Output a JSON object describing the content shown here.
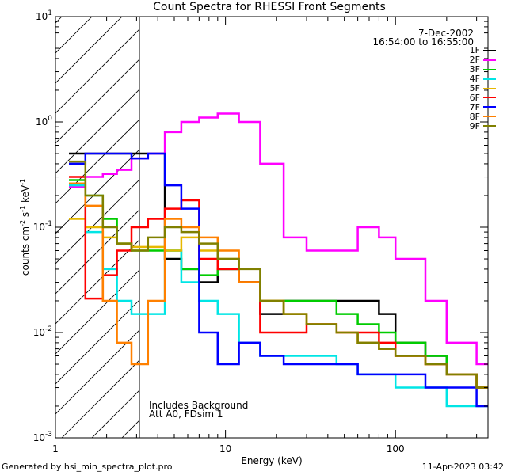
{
  "title": "Count Spectra for RHESSI Front Segments",
  "footer": {
    "left": "Generated by hsi_min_spectra_plot.pro",
    "right": "11-Apr-2023 03:42"
  },
  "annotations": {
    "date": "7-Dec-2002",
    "time_range": "16:54:00 to 16:55:00",
    "note_background": "Includes Background",
    "note_attenuator": "Att A0, FDsim 1"
  },
  "axes": {
    "xlabel": "Energy (keV)",
    "ylabel_main": "counts cm",
    "ylabel_sup1": "-2",
    "ylabel_mid": " s",
    "ylabel_sup2": "-1",
    "ylabel_end": " keV",
    "ylabel_sup3": "-1",
    "xticks": [
      {
        "value": 1,
        "label": "1"
      },
      {
        "value": 10,
        "label": "10"
      },
      {
        "value": 100,
        "label": "100"
      }
    ],
    "yticks": [
      {
        "value": 0.001,
        "base": "10",
        "exp": "-3"
      },
      {
        "value": 0.01,
        "base": "10",
        "exp": "-2"
      },
      {
        "value": 0.1,
        "base": "10",
        "exp": "-1"
      },
      {
        "value": 1,
        "base": "10",
        "exp": "0"
      },
      {
        "value": 10,
        "base": "10",
        "exp": "1"
      }
    ]
  },
  "chart_data": {
    "type": "line",
    "title": "Count Spectra for RHESSI Front Segments",
    "xlabel": "Energy (keV)",
    "ylabel": "counts cm^-2 s^-1 keV^-1",
    "xscale": "log",
    "yscale": "log",
    "xlim": [
      1,
      350
    ],
    "ylim": [
      0.001,
      10
    ],
    "grid": false,
    "legend_position": "top-right",
    "shaded_region": {
      "x_range": [
        1,
        3
      ],
      "style": "diagonal hatch"
    },
    "series": [
      {
        "name": "1F",
        "color": "#000000",
        "x": [
          1.2,
          1.5,
          1.9,
          2.3,
          2.8,
          3.5,
          4.4,
          5.5,
          7,
          9,
          12,
          16,
          22,
          30,
          45,
          60,
          80,
          100,
          150,
          200,
          300
        ],
        "y": [
          0.5,
          0.5,
          0.5,
          0.5,
          0.5,
          0.5,
          0.05,
          0.04,
          0.03,
          0.04,
          0.03,
          0.015,
          0.02,
          0.02,
          0.02,
          0.02,
          0.015,
          0.008,
          0.006,
          0.004,
          0.003
        ]
      },
      {
        "name": "2F",
        "color": "#ff00ff",
        "x": [
          1.2,
          1.5,
          1.9,
          2.3,
          2.8,
          3.5,
          4.4,
          5.5,
          7,
          9,
          12,
          16,
          22,
          30,
          45,
          60,
          80,
          100,
          150,
          200,
          300
        ],
        "y": [
          0.24,
          0.3,
          0.32,
          0.35,
          0.45,
          0.5,
          0.8,
          1.0,
          1.1,
          1.2,
          1.0,
          0.4,
          0.08,
          0.06,
          0.06,
          0.1,
          0.08,
          0.05,
          0.02,
          0.008,
          0.005
        ]
      },
      {
        "name": "3F",
        "color": "#00cc00",
        "x": [
          1.2,
          1.5,
          1.9,
          2.3,
          2.8,
          3.5,
          4.4,
          5.5,
          7,
          9,
          12,
          16,
          22,
          30,
          45,
          60,
          80,
          100,
          150,
          200,
          300
        ],
        "y": [
          0.28,
          0.2,
          0.12,
          0.07,
          0.06,
          0.06,
          0.06,
          0.04,
          0.035,
          0.04,
          0.03,
          0.02,
          0.02,
          0.02,
          0.015,
          0.012,
          0.01,
          0.008,
          0.006,
          0.004,
          0.003
        ]
      },
      {
        "name": "4F",
        "color": "#00e5e5",
        "x": [
          1.2,
          1.5,
          1.9,
          2.3,
          2.8,
          3.5,
          4.4,
          5.5,
          7,
          9,
          12,
          16,
          22,
          30,
          45,
          60,
          80,
          100,
          150,
          200,
          300
        ],
        "y": [
          0.25,
          0.09,
          0.04,
          0.02,
          0.015,
          0.015,
          0.06,
          0.03,
          0.02,
          0.015,
          0.008,
          0.006,
          0.006,
          0.006,
          0.005,
          0.004,
          0.004,
          0.003,
          0.003,
          0.002,
          0.002
        ]
      },
      {
        "name": "5F",
        "color": "#e6b800",
        "x": [
          1.2,
          1.5,
          1.9,
          2.3,
          2.8,
          3.5,
          4.4,
          5.5,
          7,
          9,
          12,
          16,
          22,
          30,
          45,
          60,
          80,
          100,
          150,
          200,
          300
        ],
        "y": [
          0.12,
          0.1,
          0.08,
          0.07,
          0.065,
          0.065,
          0.06,
          0.08,
          0.06,
          0.05,
          0.03,
          0.02,
          0.015,
          0.012,
          0.01,
          0.008,
          0.007,
          0.006,
          0.005,
          0.004,
          0.003
        ]
      },
      {
        "name": "6F",
        "color": "#ff0000",
        "x": [
          1.2,
          1.5,
          1.9,
          2.3,
          2.8,
          3.5,
          4.4,
          5.5,
          7,
          9,
          12,
          16,
          22,
          30,
          45,
          60,
          80,
          100,
          150,
          200,
          300
        ],
        "y": [
          0.3,
          0.021,
          0.035,
          0.06,
          0.1,
          0.12,
          0.15,
          0.18,
          0.05,
          0.04,
          0.03,
          0.01,
          0.01,
          0.012,
          0.01,
          0.01,
          0.008,
          0.006,
          0.005,
          0.004,
          0.003
        ]
      },
      {
        "name": "7F",
        "color": "#0000ff",
        "x": [
          1.2,
          1.5,
          1.9,
          2.3,
          2.8,
          3.5,
          4.4,
          5.5,
          7,
          9,
          12,
          16,
          22,
          30,
          45,
          60,
          80,
          100,
          150,
          200,
          300
        ],
        "y": [
          0.4,
          0.5,
          0.5,
          0.5,
          0.45,
          0.5,
          0.25,
          0.15,
          0.01,
          0.005,
          0.008,
          0.006,
          0.005,
          0.005,
          0.005,
          0.004,
          0.004,
          0.004,
          0.003,
          0.003,
          0.002
        ]
      },
      {
        "name": "8F",
        "color": "#ff8000",
        "x": [
          1.2,
          1.5,
          1.9,
          2.3,
          2.8,
          3.5,
          4.4,
          5.5,
          7,
          9,
          12,
          16,
          22,
          30,
          45,
          60,
          80,
          100,
          150,
          200,
          300
        ],
        "y": [
          0.26,
          0.16,
          0.02,
          0.008,
          0.005,
          0.02,
          0.12,
          0.1,
          0.08,
          0.06,
          0.03,
          0.02,
          0.015,
          0.012,
          0.01,
          0.008,
          0.007,
          0.006,
          0.005,
          0.004,
          0.003
        ]
      },
      {
        "name": "9F",
        "color": "#808000",
        "x": [
          1.2,
          1.5,
          1.9,
          2.3,
          2.8,
          3.5,
          4.4,
          5.5,
          7,
          9,
          12,
          16,
          22,
          30,
          45,
          60,
          80,
          100,
          150,
          200,
          300
        ],
        "y": [
          0.42,
          0.2,
          0.1,
          0.07,
          0.06,
          0.08,
          0.1,
          0.09,
          0.07,
          0.05,
          0.04,
          0.02,
          0.015,
          0.012,
          0.01,
          0.008,
          0.007,
          0.006,
          0.005,
          0.004,
          0.003
        ]
      }
    ]
  }
}
